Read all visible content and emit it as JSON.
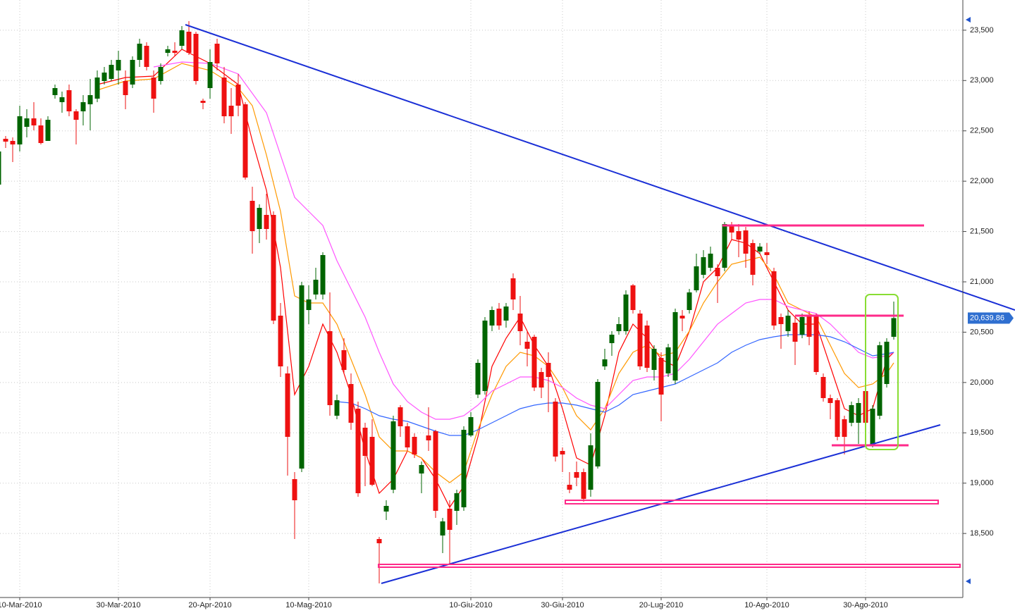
{
  "chart_data": {
    "type": "candlestick",
    "categories": [
      null,
      null,
      null,
      "10-Mar-2010",
      null,
      null,
      null,
      null,
      null,
      null,
      null,
      null,
      null,
      null,
      null,
      null,
      null,
      "30-Mar-2010",
      null,
      null,
      null,
      null,
      null,
      null,
      null,
      null,
      null,
      null,
      null,
      null,
      "20-Apr-2010",
      null,
      null,
      null,
      null,
      null,
      null,
      null,
      null,
      null,
      null,
      null,
      null,
      null,
      "10-Mag-2010",
      null,
      null,
      null,
      null,
      null,
      null,
      null,
      null,
      null,
      null,
      null,
      null,
      null,
      null,
      null,
      null,
      null,
      null,
      null,
      null,
      null,
      null,
      "10-Giu-2010",
      null,
      null,
      null,
      null,
      null,
      null,
      null,
      null,
      null,
      null,
      null,
      null,
      "30-Giu-2010",
      null,
      null,
      null,
      null,
      null,
      null,
      null,
      null,
      null,
      null,
      null,
      null,
      null,
      "20-Lug-2010",
      null,
      null,
      null,
      null,
      null,
      null,
      null,
      null,
      null,
      null,
      null,
      null,
      null,
      null,
      "10-Ago-2010",
      null,
      null,
      null,
      null,
      null,
      null,
      null,
      null,
      null,
      null,
      null,
      null,
      null,
      "30-Ago-2010",
      null,
      null,
      null,
      null
    ],
    "open": [
      21966,
      22421,
      22400,
      22365,
      22540,
      22624,
      22554,
      22400,
      22855,
      22785,
      22904,
      22694,
      22694,
      22764,
      22820,
      22995,
      23016,
      23100,
      22995,
      22960,
      23205,
      23345,
      23030,
      22995,
      23275,
      23296,
      23345,
      23485,
      23464,
      22799,
      22925,
      23366,
      23030,
      22750,
      22960,
      22764,
      21805,
      21525,
      21665,
      21665,
      20664,
      20090,
      19040,
      19145,
      20720,
      20874,
      20874,
      20510,
      19670,
      20321,
      19985,
      19740,
      19551,
      19460,
      18445,
      18718,
      18935,
      19754,
      19565,
      19460,
      19096,
      19474,
      19516,
      18480,
      18746,
      18725,
      18760,
      19474,
      19880,
      19915,
      20566,
      20734,
      20615,
      21035,
      20685,
      20405,
      20454,
      20104,
      20195,
      19810,
      19320,
      18984,
      19110,
      19110,
      18935,
      19166,
      20160,
      20391,
      20510,
      20510,
      20965,
      20685,
      20566,
      20125,
      20244,
      20090,
      20020,
      20664,
      20720,
      20916,
      21070,
      21140,
      21140,
      21140,
      21560,
      21504,
      21511,
      21385,
      21301,
      21294,
      21105,
      20650,
      20510,
      20594,
      20475,
      20664,
      20664,
      20055,
      19845,
      19824,
      19635,
      19600,
      19600,
      19915,
      19376,
      19670,
      19985,
      20454
    ],
    "high": [
      22330,
      22449,
      22435,
      22750,
      22715,
      22785,
      22624,
      22645,
      22960,
      22890,
      22960,
      22715,
      22855,
      23016,
      23100,
      23135,
      23205,
      23296,
      23100,
      23240,
      23415,
      23380,
      23100,
      23170,
      23345,
      23380,
      23541,
      23590,
      23485,
      22820,
      23310,
      23415,
      23135,
      22925,
      23065,
      22785,
      21945,
      21770,
      21875,
      21700,
      20790,
      20160,
      19110,
      21000,
      20965,
      21140,
      21294,
      20895,
      19880,
      20440,
      20090,
      19810,
      19600,
      19635,
      18466,
      18830,
      19670,
      19775,
      19600,
      19495,
      19215,
      19754,
      19530,
      18655,
      18830,
      18935,
      19565,
      19705,
      20230,
      20650,
      20755,
      20790,
      20790,
      21084,
      20860,
      20510,
      20475,
      20146,
      20300,
      19845,
      19355,
      19110,
      19215,
      19145,
      19495,
      20034,
      20335,
      20510,
      20650,
      20916,
      20979,
      20720,
      20615,
      20370,
      20300,
      20384,
      20734,
      20720,
      20930,
      21280,
      21315,
      21350,
      21175,
      21595,
      21595,
      21574,
      21546,
      21420,
      21385,
      21385,
      21140,
      20685,
      20720,
      20650,
      20685,
      20706,
      20685,
      20090,
      19880,
      19845,
      19670,
      19810,
      19845,
      19950,
      19775,
      20405,
      20440,
      20804
    ],
    "low": [
      21945,
      22330,
      22190,
      22295,
      22435,
      22505,
      22365,
      22400,
      22820,
      22680,
      22645,
      22365,
      22554,
      22505,
      22785,
      22960,
      22995,
      22960,
      22715,
      22925,
      23135,
      23100,
      22680,
      22960,
      23240,
      23240,
      23310,
      23254,
      22960,
      22715,
      22820,
      23100,
      22575,
      22470,
      22645,
      22015,
      21280,
      21385,
      21420,
      20580,
      20055,
      19075,
      18445,
      19110,
      20580,
      20825,
      20825,
      19670,
      19635,
      20090,
      19530,
      18865,
      18970,
      18970,
      18004,
      18634,
      18900,
      19460,
      19320,
      19250,
      18900,
      19320,
      18655,
      18305,
      18200,
      18585,
      18725,
      19460,
      19845,
      19880,
      20510,
      20524,
      20545,
      20720,
      20370,
      20160,
      19915,
      19845,
      19705,
      19215,
      19110,
      18900,
      18970,
      18816,
      18865,
      19145,
      20125,
      20265,
      20475,
      20475,
      20685,
      20125,
      20104,
      20020,
      19614,
      20055,
      19985,
      20510,
      20685,
      20895,
      21035,
      21105,
      20790,
      21105,
      21420,
      21245,
      21140,
      20965,
      21280,
      21175,
      20524,
      20335,
      20454,
      20174,
      20440,
      20370,
      20076,
      19810,
      19635,
      19425,
      19285,
      19565,
      19390,
      19390,
      19355,
      19635,
      19950,
      20426
    ],
    "close": [
      22295,
      22393,
      22365,
      22645,
      22624,
      22554,
      22379,
      22610,
      22925,
      22834,
      22694,
      22610,
      22785,
      22855,
      23030,
      23079,
      23156,
      23205,
      22855,
      23205,
      23366,
      23135,
      22820,
      23135,
      23310,
      23275,
      23499,
      23275,
      22995,
      22778,
      23184,
      23170,
      22645,
      22645,
      22750,
      22036,
      21504,
      21735,
      21525,
      20615,
      20160,
      19460,
      18830,
      20965,
      20825,
      21021,
      21266,
      19775,
      19824,
      20125,
      19600,
      18900,
      19271,
      18984,
      18403,
      18774,
      19614,
      19565,
      19355,
      19285,
      19180,
      19425,
      18725,
      18620,
      18536,
      18900,
      19530,
      19656,
      20195,
      20615,
      20720,
      20566,
      20755,
      20825,
      20510,
      20335,
      19950,
      19950,
      20055,
      19264,
      19285,
      18935,
      19054,
      18844,
      19376,
      20006,
      20230,
      20475,
      20580,
      20874,
      20720,
      20160,
      20146,
      20335,
      19880,
      20349,
      20699,
      20636,
      20895,
      21154,
      21245,
      21280,
      21056,
      21574,
      21490,
      21420,
      21280,
      21070,
      21350,
      21266,
      20566,
      20580,
      20664,
      20405,
      20650,
      20454,
      20104,
      19845,
      19796,
      19460,
      19460,
      19775,
      19796,
      19600,
      19740,
      20370,
      20405,
      20639.86
    ],
    "up_color": "#006400",
    "down_color": "#ee1111",
    "overlays": [
      {
        "color": "#ff0000",
        "x": [
          14,
          18,
          22,
          26,
          30,
          34,
          36,
          38,
          40,
          42,
          44,
          46,
          48,
          50,
          52,
          54,
          56,
          58,
          60,
          62,
          64,
          66,
          68,
          70,
          72,
          74,
          76,
          78,
          80,
          82,
          84,
          86,
          88,
          90,
          92,
          94,
          96,
          98,
          100,
          102,
          104,
          106,
          108,
          110,
          112,
          114,
          116,
          118,
          120,
          122,
          124,
          126,
          127
        ],
        "values": [
          22960,
          23030,
          23044,
          23310,
          23170,
          22960,
          22400,
          21910,
          21140,
          19880,
          20160,
          20580,
          20300,
          19880,
          19320,
          18900,
          19040,
          19320,
          19250,
          19040,
          18760,
          18970,
          19460,
          20160,
          20440,
          20650,
          20370,
          20160,
          19740,
          19250,
          19180,
          19670,
          20300,
          20580,
          20440,
          20230,
          20160,
          20510,
          21000,
          21140,
          21420,
          21385,
          21280,
          21000,
          20720,
          20580,
          20580,
          20160,
          19740,
          19670,
          19740,
          20230,
          20300
        ]
      },
      {
        "color": "#ff9900",
        "x": [
          14,
          18,
          22,
          26,
          30,
          34,
          36,
          38,
          40,
          42,
          44,
          46,
          48,
          50,
          52,
          54,
          56,
          58,
          60,
          62,
          64,
          66,
          68,
          70,
          72,
          74,
          76,
          78,
          80,
          82,
          84,
          86,
          88,
          90,
          92,
          94,
          96,
          98,
          100,
          102,
          104,
          106,
          108,
          110,
          112,
          114,
          116,
          118,
          120,
          122,
          124,
          126,
          127
        ],
        "values": [
          22904,
          22995,
          23016,
          23170,
          23100,
          22925,
          22750,
          22260,
          21700,
          20860,
          20790,
          20790,
          20580,
          20230,
          19880,
          19460,
          19320,
          19320,
          19250,
          19110,
          19005,
          19110,
          19530,
          19880,
          20160,
          20300,
          20265,
          20160,
          19950,
          19670,
          19530,
          19740,
          20090,
          20300,
          20370,
          20265,
          20300,
          20510,
          20790,
          21000,
          21175,
          21210,
          21245,
          21070,
          20790,
          20720,
          20650,
          20370,
          20090,
          19950,
          19985,
          20090,
          20195
        ]
      },
      {
        "color": "#ff55ff",
        "x": [
          22,
          26,
          30,
          34,
          38,
          42,
          44,
          46,
          48,
          50,
          52,
          54,
          56,
          58,
          60,
          62,
          64,
          66,
          68,
          70,
          72,
          74,
          76,
          78,
          80,
          82,
          84,
          86,
          88,
          90,
          92,
          94,
          96,
          98,
          100,
          102,
          104,
          106,
          108,
          110,
          112,
          114,
          116,
          118,
          120,
          122,
          124,
          126,
          127
        ],
        "values": [
          23135,
          23184,
          23170,
          23065,
          22680,
          21840,
          21700,
          21560,
          21210,
          20930,
          20650,
          20300,
          19985,
          19810,
          19705,
          19635,
          19635,
          19670,
          19775,
          19915,
          19985,
          20055,
          20055,
          20020,
          19950,
          19845,
          19775,
          19740,
          19880,
          20020,
          20055,
          20055,
          20090,
          20230,
          20405,
          20580,
          20685,
          20790,
          20825,
          20825,
          20755,
          20720,
          20685,
          20580,
          20440,
          20300,
          20244,
          20265,
          20300
        ]
      },
      {
        "color": "#3366ff",
        "x": [
          48,
          50,
          52,
          54,
          56,
          58,
          60,
          62,
          64,
          66,
          68,
          70,
          72,
          74,
          76,
          78,
          80,
          82,
          84,
          86,
          88,
          90,
          92,
          94,
          96,
          98,
          100,
          102,
          104,
          106,
          108,
          110,
          112,
          114,
          116,
          118,
          120,
          122,
          124,
          126,
          127
        ],
        "values": [
          19810,
          19796,
          19740,
          19670,
          19635,
          19614,
          19565,
          19516,
          19474,
          19474,
          19530,
          19600,
          19670,
          19740,
          19775,
          19796,
          19796,
          19775,
          19740,
          19705,
          19775,
          19880,
          19915,
          19950,
          19985,
          20055,
          20125,
          20195,
          20300,
          20370,
          20426,
          20454,
          20475,
          20475,
          20475,
          20454,
          20405,
          20335,
          20265,
          20286,
          20300
        ]
      }
    ],
    "last_price": {
      "value": 20639.86,
      "label": "20,639.86"
    },
    "ylim": [
      17864,
      23800
    ],
    "yticks": [
      {
        "value": 18500,
        "label": "18,500"
      },
      {
        "value": 19000,
        "label": "19,000"
      },
      {
        "value": 19500,
        "label": "19,500"
      },
      {
        "value": 20000,
        "label": "20,000"
      },
      {
        "value": 20500,
        "label": "20,500"
      },
      {
        "value": 21000,
        "label": "21,000"
      },
      {
        "value": 21500,
        "label": "21,500"
      },
      {
        "value": 22000,
        "label": "22,000"
      },
      {
        "value": 22500,
        "label": "22,500"
      },
      {
        "value": 23000,
        "label": "23,000"
      },
      {
        "value": 23500,
        "label": "23,500"
      }
    ],
    "grid": true
  }
}
